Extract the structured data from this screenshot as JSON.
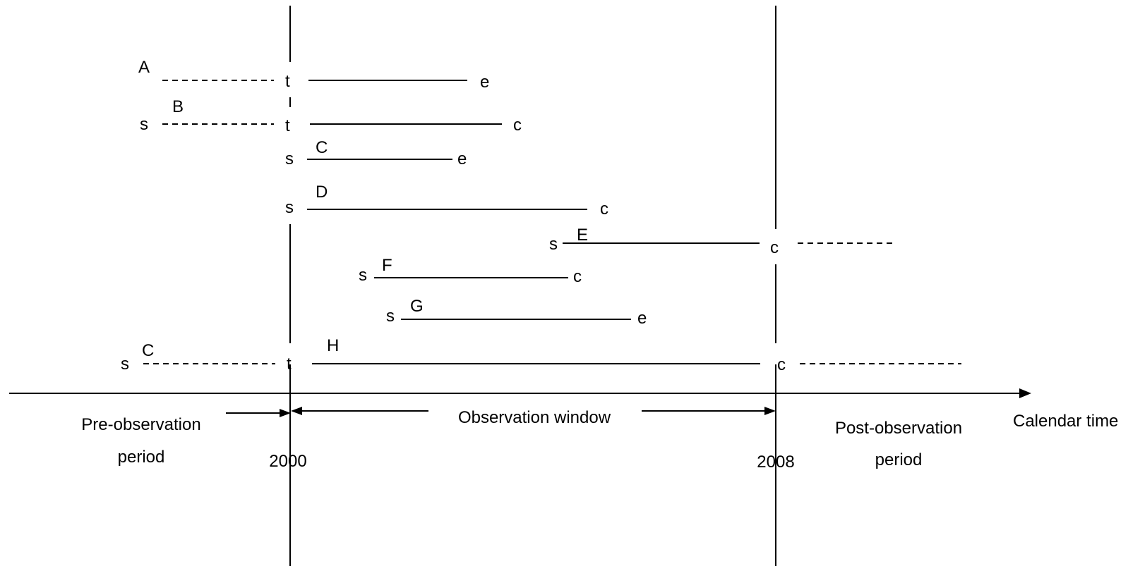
{
  "years": {
    "start": "2000",
    "end": "2008"
  },
  "periods": {
    "pre": [
      "Pre-observation",
      "period"
    ],
    "window": "Observation window",
    "post": [
      "Post-observation",
      "period"
    ]
  },
  "axis_label": "Calendar time",
  "cases": [
    {
      "label": "A",
      "start_mark": "",
      "entry_mark": "t",
      "end_mark": "e"
    },
    {
      "label": "B",
      "start_mark": "s",
      "entry_mark": "t",
      "end_mark": "c"
    },
    {
      "label": "C",
      "start_mark": "s",
      "entry_mark": "",
      "end_mark": "e"
    },
    {
      "label": "D",
      "start_mark": "s",
      "entry_mark": "",
      "end_mark": "c"
    },
    {
      "label": "E",
      "start_mark": "s",
      "entry_mark": "",
      "end_mark": "c"
    },
    {
      "label": "F",
      "start_mark": "s",
      "entry_mark": "",
      "end_mark": "c"
    },
    {
      "label": "G",
      "start_mark": "s",
      "entry_mark": "",
      "end_mark": "e"
    },
    {
      "label": "H",
      "start_mark": "s",
      "entry_mark": "t",
      "end_mark": "c",
      "extra_label": "C"
    }
  ]
}
